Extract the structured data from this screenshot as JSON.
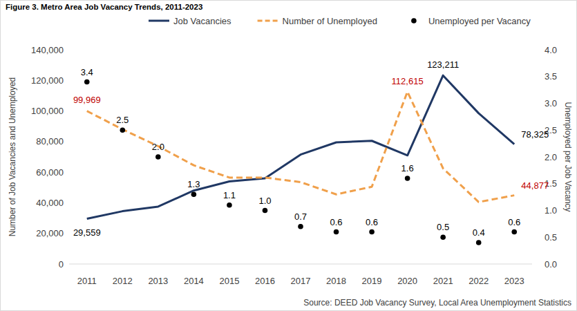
{
  "chart_data": {
    "type": "line",
    "title": "Figure 3. Metro Area Job Vacancy Trends, 2011-2023",
    "source": "Source: DEED Job Vacancy Survey, Local Area Unemployment Statistics",
    "y_label": "Number of Job Vacancies and Unemployed",
    "y2_label": "Unemployed per Job Vacancy",
    "categories": [
      "2011",
      "2012",
      "2013",
      "2014",
      "2015",
      "2016",
      "2017",
      "2018",
      "2019",
      "2020",
      "2021",
      "2022",
      "2023"
    ],
    "ylim": [
      0,
      140000
    ],
    "yticks": [
      0,
      {
        "value": 20000,
        "label": "20,000"
      },
      {
        "value": 40000,
        "label": "40,000"
      },
      {
        "value": 60000,
        "label": "60,000"
      },
      {
        "value": 80000,
        "label": "80,000"
      },
      {
        "value": 100000,
        "label": "100,000"
      },
      {
        "value": 120000,
        "label": "120,000"
      },
      {
        "value": 140000,
        "label": "140,000"
      }
    ],
    "y2lim": [
      0,
      4
    ],
    "y2ticks": [
      {
        "value": 0,
        "label": "0.0"
      },
      {
        "value": 0.5,
        "label": "0.5"
      },
      {
        "value": 1,
        "label": "1.0"
      },
      {
        "value": 1.5,
        "label": "1.5"
      },
      {
        "value": 2,
        "label": "2.0"
      },
      {
        "value": 2.5,
        "label": "2.5"
      },
      {
        "value": 3,
        "label": "3.0"
      },
      {
        "value": 3.5,
        "label": "3.5"
      },
      {
        "value": 4,
        "label": "4.0"
      }
    ],
    "grid": false,
    "legend": "top",
    "data_labels": true,
    "series": [
      {
        "name": "Job Vacancies",
        "type": "line",
        "color": "#203864",
        "line_style": "solid",
        "values": [
          29559,
          34500,
          37500,
          48000,
          54000,
          56000,
          71500,
          79500,
          80500,
          71000,
          123211,
          98500,
          78325
        ],
        "value_labels": [
          "29,559",
          null,
          null,
          null,
          null,
          null,
          null,
          null,
          null,
          null,
          "123,211",
          null,
          "78,325"
        ]
      },
      {
        "name": "Number of Unemployed",
        "type": "line",
        "color": "#f0a04b",
        "line_style": "dashed",
        "values": [
          99969,
          88000,
          77000,
          64500,
          56500,
          56500,
          53500,
          45500,
          50500,
          112615,
          62500,
          40500,
          44877
        ],
        "value_labels": [
          "99,969",
          null,
          null,
          null,
          null,
          null,
          null,
          null,
          null,
          "112,615",
          null,
          null,
          "44,877"
        ]
      },
      {
        "name": "Unemployed per Vacancy",
        "type": "scatter",
        "axis": "y2",
        "color": "#000000",
        "marker": "circle",
        "values": [
          3.4,
          2.5,
          2,
          1.3,
          1.1,
          1,
          0.7,
          0.6,
          0.6,
          1.6,
          0.5,
          0.4,
          0.6
        ],
        "value_labels": [
          "3.4",
          "2.5",
          "2.0",
          "1.3",
          "1.1",
          "1.0",
          "0.7",
          "0.6",
          "0.6",
          "1.6",
          "0.5",
          "0.4",
          "0.6"
        ]
      }
    ]
  }
}
